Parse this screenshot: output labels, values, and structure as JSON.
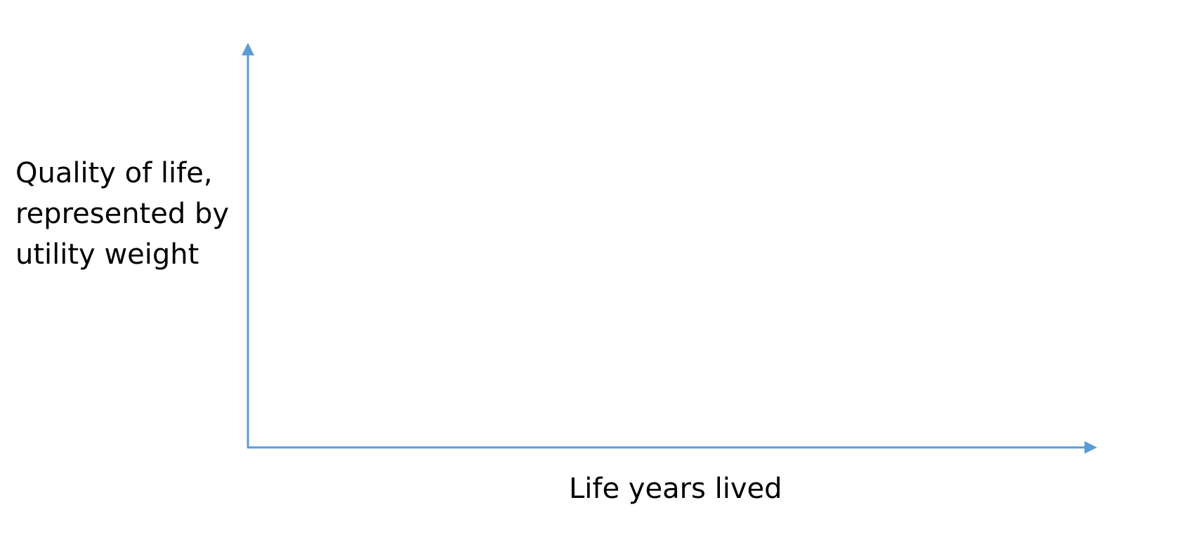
{
  "diagram": {
    "axis_color": "#5b9bd5",
    "y_axis_label_lines": [
      "Quality of life,",
      "represented by",
      "utility weight"
    ],
    "x_axis_label": "Life years lived"
  }
}
